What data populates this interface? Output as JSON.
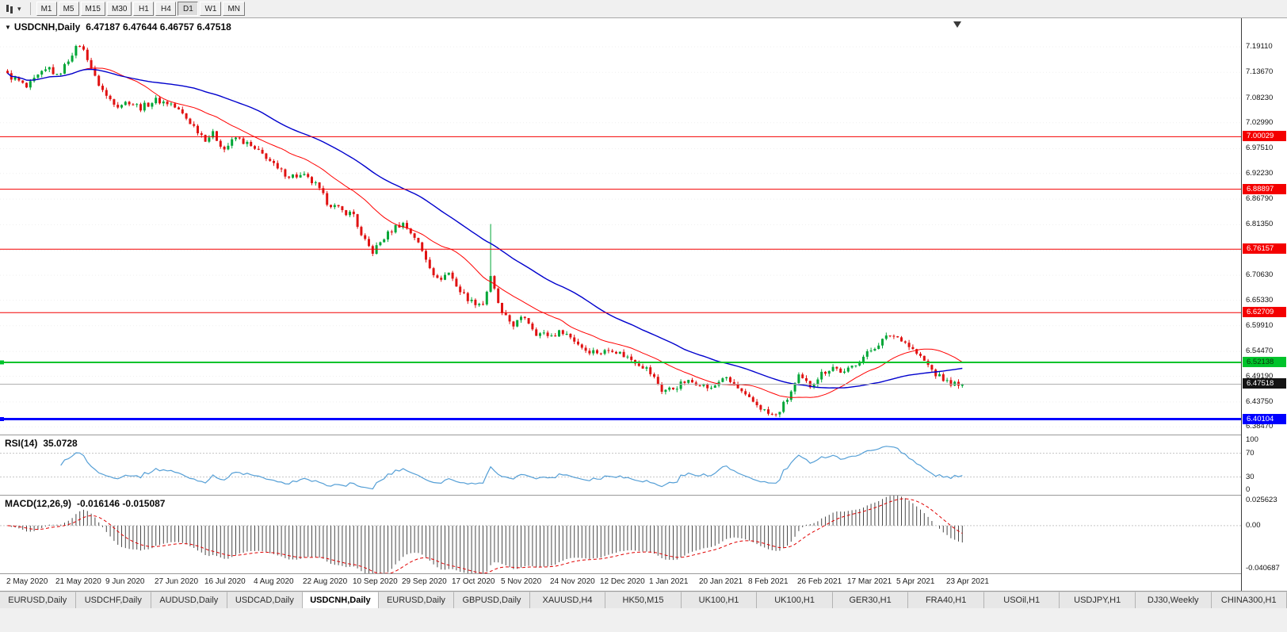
{
  "toolbar": {
    "icons": [
      "chart-type-icon",
      "chevron-down-icon"
    ],
    "timeframes": [
      "M1",
      "M5",
      "M15",
      "M30",
      "H1",
      "H4",
      "D1",
      "W1",
      "MN"
    ],
    "active_timeframe": "D1"
  },
  "chart_header": {
    "symbol_period": "USDCNH,Daily",
    "ohlc": "6.47187 6.47644 6.46757 6.47518"
  },
  "price_axis": {
    "labels": [
      "7.19110",
      "7.13670",
      "7.08230",
      "7.02990",
      "6.97510",
      "6.92230",
      "6.86790",
      "6.81350",
      "6.75910",
      "6.70630",
      "6.65330",
      "6.59910",
      "6.54470",
      "6.49190",
      "6.43750",
      "6.38470"
    ]
  },
  "chart_data": {
    "type": "candlestick",
    "symbol": "USDCNH",
    "timeframe": "Daily",
    "title_ohlc": {
      "open": 6.47187,
      "high": 6.47644,
      "low": 6.46757,
      "close": 6.47518
    },
    "ylim": [
      6.3683,
      7.2517
    ],
    "n_candles": 252,
    "x_axis": {
      "labels": [
        "2 May 2020",
        "21 May 2020",
        "9 Jun 2020",
        "27 Jun 2020",
        "16 Jul 2020",
        "4 Aug 2020",
        "22 Aug 2020",
        "10 Sep 2020",
        "29 Sep 2020",
        "17 Oct 2020",
        "5 Nov 2020",
        "24 Nov 2020",
        "12 Dec 2020",
        "1 Jan 2021",
        "20 Jan 2021",
        "8 Feb 2021",
        "26 Feb 2021",
        "17 Mar 2021",
        "5 Apr 2021",
        "23 Apr 2021"
      ],
      "candles_per_label": 13
    },
    "trend_anchors": [
      [
        0,
        7.131
      ],
      [
        3,
        7.118
      ],
      [
        5,
        7.104
      ],
      [
        8,
        7.128
      ],
      [
        11,
        7.146
      ],
      [
        13,
        7.128
      ],
      [
        15,
        7.15
      ],
      [
        17,
        7.178
      ],
      [
        19,
        7.196
      ],
      [
        21,
        7.168
      ],
      [
        23,
        7.125
      ],
      [
        26,
        7.086
      ],
      [
        29,
        7.068
      ],
      [
        32,
        7.075
      ],
      [
        35,
        7.062
      ],
      [
        39,
        7.078
      ],
      [
        43,
        7.07
      ],
      [
        46,
        7.048
      ],
      [
        49,
        7.022
      ],
      [
        52,
        6.996
      ],
      [
        54,
        7.006
      ],
      [
        57,
        6.974
      ],
      [
        60,
        6.998
      ],
      [
        63,
        6.985
      ],
      [
        65,
        6.972
      ],
      [
        68,
        6.958
      ],
      [
        71,
        6.93
      ],
      [
        74,
        6.918
      ],
      [
        78,
        6.916
      ],
      [
        81,
        6.898
      ],
      [
        84,
        6.862
      ],
      [
        88,
        6.842
      ],
      [
        91,
        6.836
      ],
      [
        93,
        6.788
      ],
      [
        96,
        6.756
      ],
      [
        99,
        6.786
      ],
      [
        102,
        6.81
      ],
      [
        104,
        6.816
      ],
      [
        107,
        6.788
      ],
      [
        110,
        6.742
      ],
      [
        113,
        6.696
      ],
      [
        116,
        6.712
      ],
      [
        119,
        6.672
      ],
      [
        122,
        6.65
      ],
      [
        125,
        6.646
      ],
      [
        127,
        6.7
      ],
      [
        129,
        6.648
      ],
      [
        130,
        6.622
      ],
      [
        133,
        6.602
      ],
      [
        136,
        6.618
      ],
      [
        139,
        6.584
      ],
      [
        143,
        6.578
      ],
      [
        146,
        6.588
      ],
      [
        149,
        6.568
      ],
      [
        152,
        6.548
      ],
      [
        156,
        6.542
      ],
      [
        159,
        6.55
      ],
      [
        162,
        6.536
      ],
      [
        165,
        6.524
      ],
      [
        168,
        6.508
      ],
      [
        170,
        6.488
      ],
      [
        172,
        6.462
      ],
      [
        175,
        6.466
      ],
      [
        178,
        6.48
      ],
      [
        182,
        6.478
      ],
      [
        185,
        6.464
      ],
      [
        188,
        6.49
      ],
      [
        191,
        6.474
      ],
      [
        194,
        6.448
      ],
      [
        197,
        6.432
      ],
      [
        200,
        6.412
      ],
      [
        202,
        6.408
      ],
      [
        205,
        6.444
      ],
      [
        208,
        6.49
      ],
      [
        211,
        6.472
      ],
      [
        214,
        6.498
      ],
      [
        217,
        6.512
      ],
      [
        220,
        6.498
      ],
      [
        223,
        6.52
      ],
      [
        226,
        6.54
      ],
      [
        229,
        6.562
      ],
      [
        232,
        6.58
      ],
      [
        235,
        6.572
      ],
      [
        238,
        6.548
      ],
      [
        241,
        6.524
      ],
      [
        244,
        6.496
      ],
      [
        247,
        6.48
      ],
      [
        250,
        6.4736
      ],
      [
        251,
        6.47518
      ]
    ],
    "wick_spikes": [
      {
        "i": 127,
        "high": 6.815
      }
    ],
    "last_candle": {
      "o": 6.47187,
      "h": 6.47644,
      "l": 6.46757,
      "c": 6.47518
    },
    "candle_colors": {
      "up": "#00a637",
      "down": "#e01212"
    },
    "moving_averages": [
      {
        "name": "fast-ma",
        "period": 20,
        "color": "#ff0000"
      },
      {
        "name": "slow-ma",
        "period": 50,
        "color": "#0000cd"
      }
    ],
    "hlines": [
      {
        "price": 7.00029,
        "label": "7.00029",
        "color": "#f40000",
        "width": 1,
        "text_color": "#ffffff",
        "handle": false
      },
      {
        "price": 6.88897,
        "label": "6.88897",
        "color": "#f40000",
        "width": 1,
        "text_color": "#ffffff",
        "handle": false
      },
      {
        "price": 6.76157,
        "label": "6.76157",
        "color": "#f40000",
        "width": 1,
        "text_color": "#ffffff",
        "handle": false
      },
      {
        "price": 6.62709,
        "label": "6.62709",
        "color": "#f40000",
        "width": 1,
        "text_color": "#ffffff",
        "handle": false
      },
      {
        "price": 6.52138,
        "label": "6.52138",
        "color": "#00c32b",
        "width": 2,
        "text_color": "#0d330d",
        "handle": true
      },
      {
        "price": 6.40104,
        "label": "6.40104",
        "color": "#0000ff",
        "width": 3,
        "text_color": "#ffffff",
        "handle": true
      }
    ],
    "current_price": {
      "price": 6.47518,
      "label": "6.47518",
      "line_color": "#b0b0b0",
      "badge_color": "#141414"
    },
    "indicators": {
      "rsi": {
        "label": "RSI(14)",
        "value": "35.0728",
        "period": 14,
        "levels": [
          70,
          30
        ],
        "ylim": [
          0,
          100
        ],
        "axis_labels": [
          "100",
          "70",
          "30",
          "0"
        ],
        "color": "#559fd6"
      },
      "macd": {
        "label": "MACD(12,26,9)",
        "value": "-0.016146 -0.015087",
        "fast": 12,
        "slow": 26,
        "signal": 9,
        "ylim": [
          -0.040687,
          0.025623
        ],
        "axis_labels": [
          "0.025623",
          "0.00",
          "-0.040687"
        ],
        "histogram_color": "#4a4a4a",
        "signal_color": "#e00000"
      }
    }
  },
  "tabs": {
    "items": [
      "EURUSD,Daily",
      "USDCHF,Daily",
      "AUDUSD,Daily",
      "USDCAD,Daily",
      "USDCNH,Daily",
      "EURUSD,Daily",
      "GBPUSD,Daily",
      "XAUUSD,H4",
      "HK50,M15",
      "UK100,H1",
      "UK100,H1",
      "GER30,H1",
      "FRA40,H1",
      "USOil,H1",
      "USDJPY,H1",
      "DJ30,Weekly",
      "CHINA300,H1"
    ],
    "active_index": 4
  }
}
